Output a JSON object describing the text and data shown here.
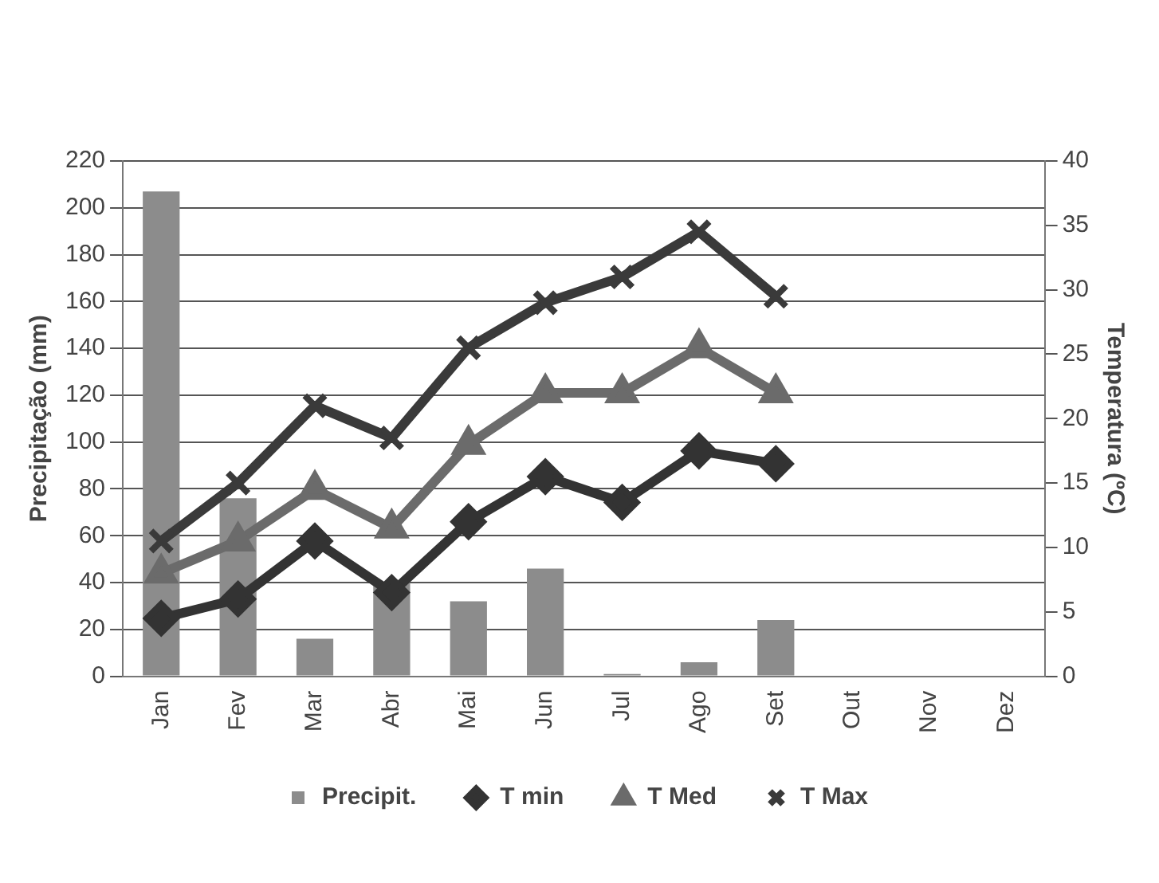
{
  "chart_data": {
    "type": "bar",
    "categories": [
      "Jan",
      "Fev",
      "Mar",
      "Abr",
      "Mai",
      "Jun",
      "Jul",
      "Ago",
      "Set",
      "Out",
      "Nov",
      "Dez"
    ],
    "ylabel": "Precipitação (mm)",
    "y2label": "Temperatura (ºC)",
    "ylim": [
      0,
      220
    ],
    "yticks": [
      0,
      20,
      40,
      60,
      80,
      100,
      120,
      140,
      160,
      180,
      200,
      220
    ],
    "y2lim": [
      0,
      40
    ],
    "y2ticks": [
      0,
      5,
      10,
      15,
      20,
      25,
      30,
      35,
      40
    ],
    "grid": "y",
    "legend": "bottom",
    "series": [
      {
        "name": "Precipit.",
        "type": "bar",
        "color": "#8c8c8c",
        "values": [
          207,
          76,
          16,
          40,
          32,
          46,
          1,
          6,
          24,
          null,
          null,
          null
        ]
      },
      {
        "name": "T min",
        "type": "line",
        "axis": "y2",
        "marker": "diamond",
        "color": "#333333",
        "values": [
          4.5,
          6,
          10.5,
          6.5,
          12,
          15.5,
          13.5,
          17.5,
          16.5,
          null,
          null,
          null
        ]
      },
      {
        "name": "T Med",
        "type": "line",
        "axis": "y2",
        "marker": "triangle",
        "color": "#6b6b6b",
        "values": [
          8,
          10.5,
          14.5,
          11.5,
          18,
          22,
          22,
          25.5,
          22,
          null,
          null,
          null
        ]
      },
      {
        "name": "T Max",
        "type": "line",
        "axis": "y2",
        "marker": "cross",
        "color": "#3a3a3a",
        "values": [
          10.5,
          15,
          21,
          18.5,
          25.5,
          29,
          31,
          34.5,
          29.5,
          null,
          null,
          null
        ]
      }
    ]
  }
}
